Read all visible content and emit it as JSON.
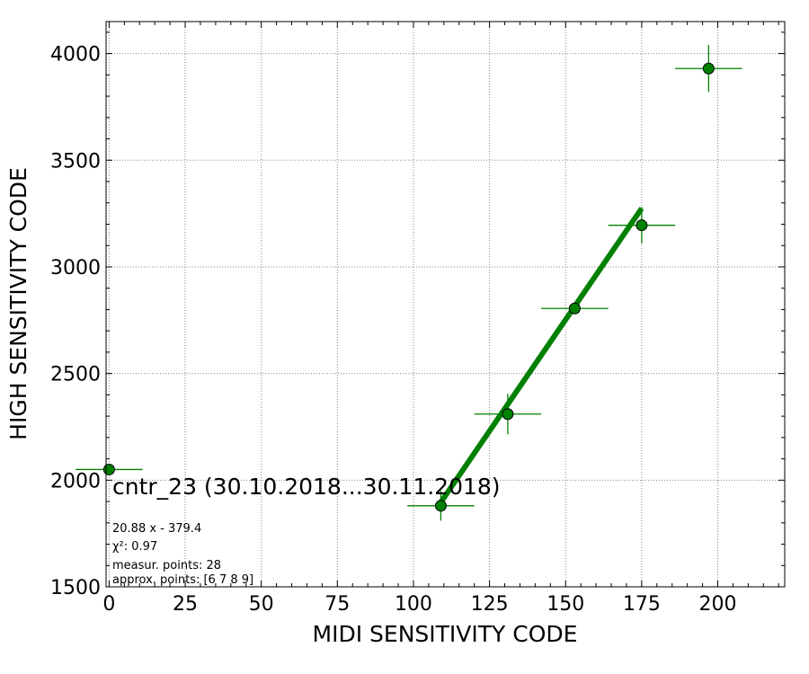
{
  "chart_data": {
    "type": "scatter",
    "title": "cntr_23 (30.10.2018...30.11.2018)",
    "xlabel": "MIDI SENSITIVITY CODE",
    "ylabel": "HIGH SENSITIVITY CODE",
    "xlim": [
      -1,
      222
    ],
    "ylim": [
      1500,
      4150
    ],
    "xticks": [
      0,
      25,
      50,
      75,
      100,
      125,
      150,
      175,
      200
    ],
    "yticks": [
      1500,
      2000,
      2500,
      3000,
      3500,
      4000
    ],
    "grid": true,
    "point_color": "#008000",
    "line_color": "#008000",
    "points": [
      {
        "x": 0,
        "y": 2050,
        "xerr": 11,
        "yerr": 0
      },
      {
        "x": 109,
        "y": 1880,
        "xerr": 11,
        "yerr": 70
      },
      {
        "x": 131,
        "y": 2310,
        "xerr": 11,
        "yerr": 95
      },
      {
        "x": 153,
        "y": 2805,
        "xerr": 11,
        "yerr": 0
      },
      {
        "x": 175,
        "y": 3195,
        "xerr": 11,
        "yerr": 85
      },
      {
        "x": 197,
        "y": 3930,
        "xerr": 11,
        "yerr": 110
      }
    ],
    "fit": {
      "slope": 20.88,
      "intercept": -379.4,
      "x_range": [
        109,
        175
      ]
    },
    "annotations": [
      "20.88 x - 379.4",
      "χ²: 0.97",
      "measur. points: 28",
      "approx. points: [6 7 8 9]"
    ]
  }
}
